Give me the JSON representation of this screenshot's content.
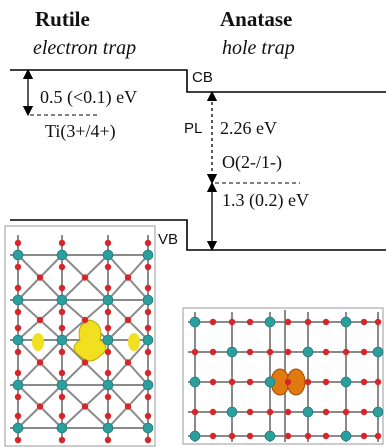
{
  "columns": [
    {
      "title": "Rutile",
      "subtitle": "electron trap"
    },
    {
      "title": "Anatase",
      "subtitle": "hole trap"
    }
  ],
  "bands": {
    "cb": "CB",
    "vb": "VB"
  },
  "levels": {
    "rutile_gap": "0.5 (<0.1) eV",
    "rutile_state": "Ti(3+/4+)",
    "pl": "PL",
    "pl_energy": "2.26 eV",
    "anatase_state": "O(2-/1-)",
    "anatase_gap": "1.3 (0.2) eV"
  }
}
